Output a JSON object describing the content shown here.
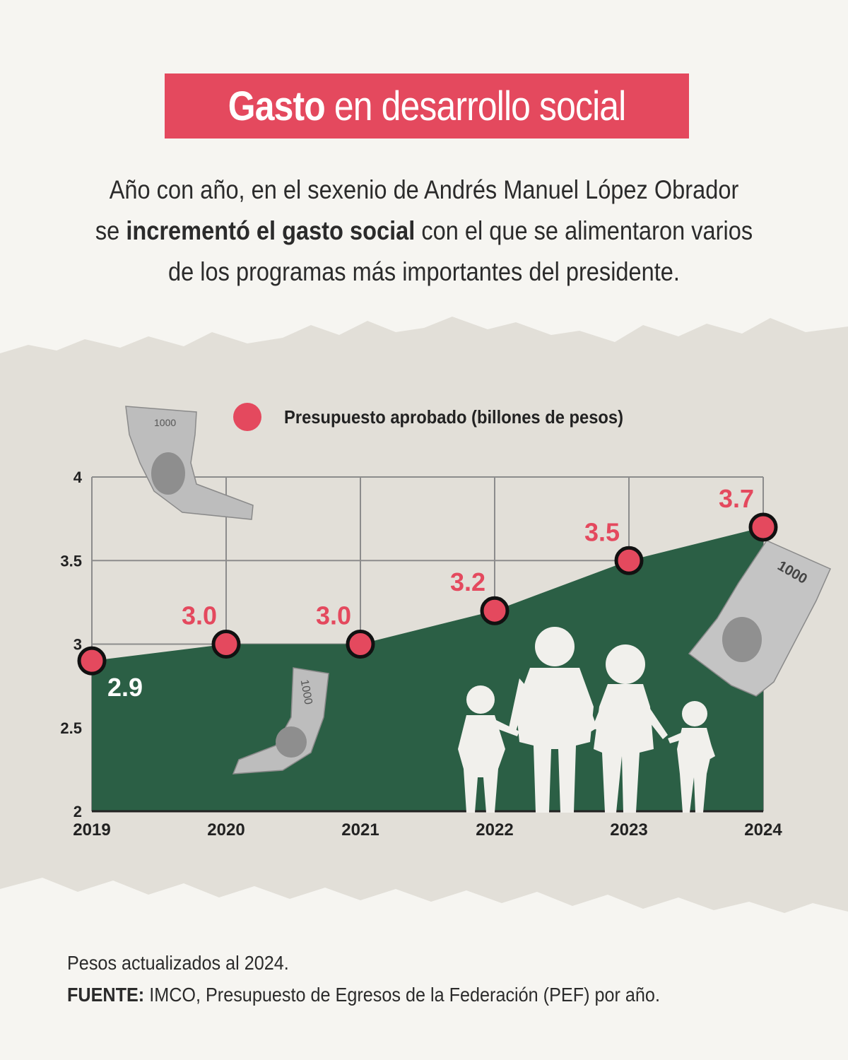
{
  "header": {
    "title_bold": "Gasto",
    "title_rest": " en desarrollo social"
  },
  "subtitle": {
    "line1": "Año con año, en el sexenio de Andrés Manuel López Obrador",
    "line2_pre": "se ",
    "line2_bold": "incrementó el gasto social",
    "line2_post": " con el que se alimentaron varios",
    "line3": "de los programas más importantes del presidente."
  },
  "chart_data": {
    "type": "area",
    "x": [
      "2019",
      "2020",
      "2021",
      "2022",
      "2023",
      "2024"
    ],
    "series": [
      {
        "name": "Presupuesto aprobado (billones de pesos)",
        "values": [
          2.9,
          3.0,
          3.0,
          3.2,
          3.5,
          3.7
        ],
        "labels": [
          "2.9",
          "3.0",
          "3.0",
          "3.2",
          "3.5",
          "3.7"
        ]
      }
    ],
    "yticks": [
      "2",
      "2.5",
      "3",
      "3.5",
      "4"
    ],
    "ylim": [
      2,
      4
    ],
    "grid": true,
    "legend": "top",
    "colors": {
      "area": "#2b5f45",
      "marker": "#e4495e",
      "label": "#e4495e",
      "label_inside": "#ffffff"
    }
  },
  "footer": {
    "note": "Pesos actualizados al 2024.",
    "source_label": "FUENTE:",
    "source_text": " IMCO, Presupuesto de Egresos de la Federación (PEF) por año."
  },
  "decor": {
    "banknote_text": "1000",
    "banknote_icon": "banknote-icon",
    "family_icon": "family-silhouette-icon"
  }
}
